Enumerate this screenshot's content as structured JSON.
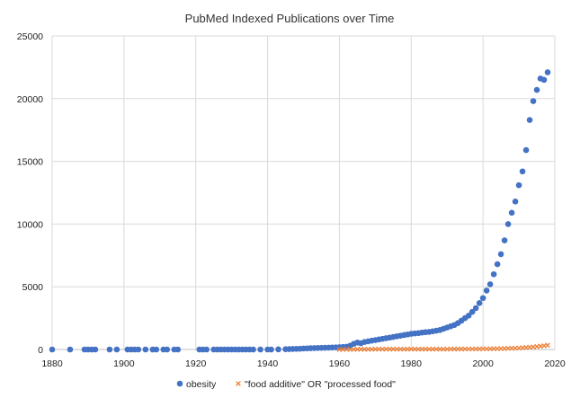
{
  "chart_data": {
    "type": "scatter",
    "title": "PubMed Indexed Publications over Time",
    "xlabel": "",
    "ylabel": "",
    "xlim": [
      1880,
      2020
    ],
    "ylim": [
      0,
      25000
    ],
    "x_ticks": [
      "1880",
      "1900",
      "1920",
      "1940",
      "1960",
      "1980",
      "2000",
      "2020"
    ],
    "y_ticks": [
      "0",
      "5000",
      "10000",
      "15000",
      "20000",
      "25000"
    ],
    "grid": true,
    "legend_position": "bottom",
    "series": [
      {
        "name": "obesity",
        "color": "#4472C4",
        "marker": "circle",
        "points": [
          [
            1880,
            0
          ],
          [
            1885,
            0
          ],
          [
            1889,
            0
          ],
          [
            1890,
            0
          ],
          [
            1891,
            0
          ],
          [
            1892,
            0
          ],
          [
            1896,
            0
          ],
          [
            1898,
            0
          ],
          [
            1901,
            0
          ],
          [
            1902,
            0
          ],
          [
            1903,
            0
          ],
          [
            1904,
            0
          ],
          [
            1906,
            0
          ],
          [
            1908,
            0
          ],
          [
            1909,
            0
          ],
          [
            1911,
            0
          ],
          [
            1912,
            0
          ],
          [
            1914,
            0
          ],
          [
            1915,
            0
          ],
          [
            1921,
            0
          ],
          [
            1922,
            0
          ],
          [
            1923,
            0
          ],
          [
            1925,
            0
          ],
          [
            1926,
            0
          ],
          [
            1927,
            0
          ],
          [
            1928,
            0
          ],
          [
            1929,
            0
          ],
          [
            1930,
            0
          ],
          [
            1931,
            0
          ],
          [
            1932,
            0
          ],
          [
            1933,
            0
          ],
          [
            1934,
            0
          ],
          [
            1935,
            0
          ],
          [
            1936,
            0
          ],
          [
            1938,
            0
          ],
          [
            1940,
            0
          ],
          [
            1941,
            0
          ],
          [
            1943,
            10
          ],
          [
            1945,
            20
          ],
          [
            1946,
            30
          ],
          [
            1947,
            40
          ],
          [
            1948,
            50
          ],
          [
            1949,
            60
          ],
          [
            1950,
            80
          ],
          [
            1951,
            90
          ],
          [
            1952,
            100
          ],
          [
            1953,
            110
          ],
          [
            1954,
            120
          ],
          [
            1955,
            130
          ],
          [
            1956,
            140
          ],
          [
            1957,
            150
          ],
          [
            1958,
            160
          ],
          [
            1959,
            170
          ],
          [
            1960,
            180
          ],
          [
            1961,
            200
          ],
          [
            1962,
            220
          ],
          [
            1963,
            300
          ],
          [
            1964,
            450
          ],
          [
            1965,
            550
          ],
          [
            1966,
            500
          ],
          [
            1967,
            600
          ],
          [
            1968,
            650
          ],
          [
            1969,
            700
          ],
          [
            1970,
            750
          ],
          [
            1971,
            800
          ],
          [
            1972,
            850
          ],
          [
            1973,
            900
          ],
          [
            1974,
            950
          ],
          [
            1975,
            1000
          ],
          [
            1976,
            1050
          ],
          [
            1977,
            1100
          ],
          [
            1978,
            1150
          ],
          [
            1979,
            1200
          ],
          [
            1980,
            1250
          ],
          [
            1981,
            1280
          ],
          [
            1982,
            1300
          ],
          [
            1983,
            1350
          ],
          [
            1984,
            1380
          ],
          [
            1985,
            1400
          ],
          [
            1986,
            1450
          ],
          [
            1987,
            1500
          ],
          [
            1988,
            1550
          ],
          [
            1989,
            1650
          ],
          [
            1990,
            1750
          ],
          [
            1991,
            1850
          ],
          [
            1992,
            1950
          ],
          [
            1993,
            2100
          ],
          [
            1994,
            2300
          ],
          [
            1995,
            2500
          ],
          [
            1996,
            2700
          ],
          [
            1997,
            3000
          ],
          [
            1998,
            3300
          ],
          [
            1999,
            3700
          ],
          [
            2000,
            4100
          ],
          [
            2001,
            4700
          ],
          [
            2002,
            5200
          ],
          [
            2003,
            6000
          ],
          [
            2004,
            6800
          ],
          [
            2005,
            7600
          ],
          [
            2006,
            8700
          ],
          [
            2007,
            10000
          ],
          [
            2008,
            10900
          ],
          [
            2009,
            11800
          ],
          [
            2010,
            13100
          ],
          [
            2011,
            14200
          ],
          [
            2012,
            15900
          ],
          [
            2013,
            18300
          ],
          [
            2014,
            19800
          ],
          [
            2015,
            20700
          ],
          [
            2016,
            21600
          ],
          [
            2017,
            21500
          ],
          [
            2018,
            22100
          ]
        ]
      },
      {
        "name": "\"food additive\" OR \"processed food\"",
        "color": "#ED7D31",
        "marker": "x",
        "points": [
          [
            1960,
            0
          ],
          [
            1961,
            5
          ],
          [
            1962,
            5
          ],
          [
            1963,
            10
          ],
          [
            1964,
            10
          ],
          [
            1965,
            15
          ],
          [
            1966,
            15
          ],
          [
            1967,
            20
          ],
          [
            1968,
            20
          ],
          [
            1969,
            20
          ],
          [
            1970,
            25
          ],
          [
            1971,
            25
          ],
          [
            1972,
            25
          ],
          [
            1973,
            30
          ],
          [
            1974,
            30
          ],
          [
            1975,
            30
          ],
          [
            1976,
            30
          ],
          [
            1977,
            30
          ],
          [
            1978,
            30
          ],
          [
            1979,
            30
          ],
          [
            1980,
            30
          ],
          [
            1981,
            30
          ],
          [
            1982,
            30
          ],
          [
            1983,
            30
          ],
          [
            1984,
            30
          ],
          [
            1985,
            30
          ],
          [
            1986,
            30
          ],
          [
            1987,
            30
          ],
          [
            1988,
            30
          ],
          [
            1989,
            30
          ],
          [
            1990,
            30
          ],
          [
            1991,
            35
          ],
          [
            1992,
            35
          ],
          [
            1993,
            35
          ],
          [
            1994,
            35
          ],
          [
            1995,
            40
          ],
          [
            1996,
            40
          ],
          [
            1997,
            40
          ],
          [
            1998,
            45
          ],
          [
            1999,
            45
          ],
          [
            2000,
            50
          ],
          [
            2001,
            50
          ],
          [
            2002,
            55
          ],
          [
            2003,
            60
          ],
          [
            2004,
            65
          ],
          [
            2005,
            70
          ],
          [
            2006,
            80
          ],
          [
            2007,
            90
          ],
          [
            2008,
            100
          ],
          [
            2009,
            110
          ],
          [
            2010,
            120
          ],
          [
            2011,
            140
          ],
          [
            2012,
            160
          ],
          [
            2013,
            180
          ],
          [
            2014,
            200
          ],
          [
            2015,
            230
          ],
          [
            2016,
            260
          ],
          [
            2017,
            300
          ],
          [
            2018,
            340
          ]
        ]
      }
    ]
  }
}
